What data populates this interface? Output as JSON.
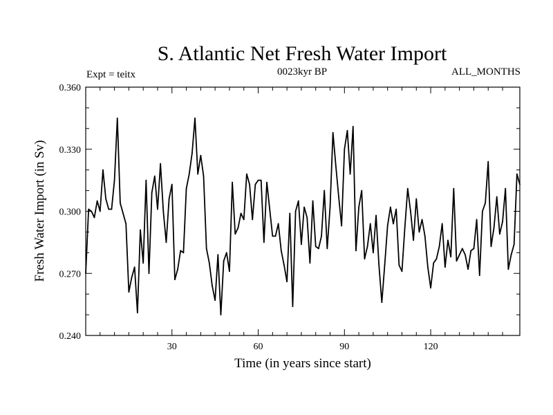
{
  "chart_data": {
    "type": "line",
    "title": "S. Atlantic Net Fresh Water Import",
    "subtitle_left": "Expt = teitx",
    "subtitle_center": "0023kyr BP",
    "subtitle_right": "ALL_MONTHS",
    "xlabel": "Time (in years since start)",
    "ylabel": "Fresh Water Import (in Sv)",
    "xlim": [
      0,
      151
    ],
    "ylim": [
      0.24,
      0.36
    ],
    "x_ticks": [
      30,
      60,
      90,
      120
    ],
    "x_tick_labels": [
      "30",
      "60",
      "90",
      "120"
    ],
    "y_ticks": [
      0.24,
      0.27,
      0.3,
      0.33,
      0.36
    ],
    "y_tick_labels": [
      "0.240",
      "0.270",
      "0.300",
      "0.330",
      "0.360"
    ],
    "color": "#000000",
    "series": [
      {
        "name": "Fresh Water Import",
        "values": [
          0.27,
          0.301,
          0.3,
          0.297,
          0.305,
          0.3,
          0.32,
          0.306,
          0.301,
          0.301,
          0.315,
          0.345,
          0.304,
          0.299,
          0.294,
          0.261,
          0.268,
          0.273,
          0.251,
          0.291,
          0.275,
          0.315,
          0.27,
          0.309,
          0.317,
          0.301,
          0.323,
          0.3,
          0.285,
          0.306,
          0.313,
          0.267,
          0.272,
          0.281,
          0.28,
          0.311,
          0.318,
          0.328,
          0.345,
          0.318,
          0.327,
          0.317,
          0.282,
          0.275,
          0.264,
          0.257,
          0.279,
          0.25,
          0.276,
          0.28,
          0.271,
          0.314,
          0.289,
          0.292,
          0.299,
          0.296,
          0.318,
          0.313,
          0.296,
          0.313,
          0.315,
          0.315,
          0.285,
          0.314,
          0.301,
          0.288,
          0.288,
          0.294,
          0.281,
          0.274,
          0.266,
          0.299,
          0.254,
          0.3,
          0.305,
          0.284,
          0.302,
          0.297,
          0.275,
          0.305,
          0.283,
          0.282,
          0.288,
          0.31,
          0.282,
          0.302,
          0.338,
          0.322,
          0.307,
          0.293,
          0.33,
          0.339,
          0.318,
          0.341,
          0.281,
          0.302,
          0.31,
          0.277,
          0.283,
          0.294,
          0.28,
          0.298,
          0.274,
          0.256,
          0.274,
          0.293,
          0.302,
          0.294,
          0.301,
          0.274,
          0.271,
          0.292,
          0.311,
          0.3,
          0.286,
          0.306,
          0.29,
          0.296,
          0.288,
          0.273,
          0.263,
          0.275,
          0.277,
          0.283,
          0.294,
          0.273,
          0.286,
          0.278,
          0.311,
          0.276,
          0.279,
          0.282,
          0.279,
          0.272,
          0.281,
          0.282,
          0.296,
          0.269,
          0.3,
          0.304,
          0.324,
          0.283,
          0.292,
          0.307,
          0.289,
          0.295,
          0.311,
          0.272,
          0.279,
          0.284,
          0.318,
          0.313
        ]
      }
    ]
  }
}
